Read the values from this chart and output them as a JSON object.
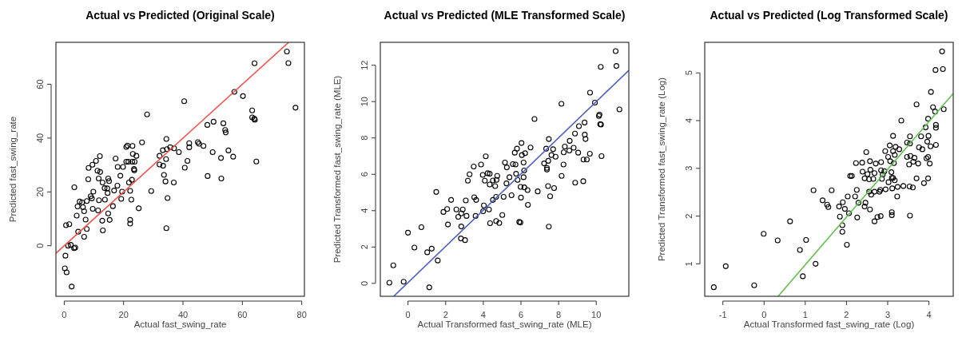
{
  "chart_data": [
    {
      "type": "scatter",
      "title": "Actual vs Predicted (Original Scale)",
      "xlabel": "Actual fast_swing_rate",
      "ylabel": "Predicted fast_swing_rate",
      "xlim": [
        -2.8,
        80.9
      ],
      "ylim": [
        -18.8,
        75.6
      ],
      "xticks": [
        0,
        20,
        40,
        60,
        80
      ],
      "yticks": [
        0,
        20,
        40,
        60
      ],
      "series": [
        {
          "marker": "circle",
          "color": "#000000",
          "x": [
            75,
            75.5,
            64.1,
            77.9,
            57.3,
            60.2,
            63.3,
            63.3,
            64,
            64.2,
            64.7,
            40.4,
            27.9,
            48.2,
            50.3,
            53.6,
            54.2,
            54.4,
            55.3,
            56.9,
            52.8,
            50,
            52.9,
            48.3,
            45,
            45.4,
            46.9,
            42.1,
            42.1,
            41.5,
            40.6,
            34.4,
            33.2,
            34.6,
            35.7,
            37,
            38.6,
            32.1,
            34.3,
            32.1,
            33.3,
            33.6,
            34.1,
            36.9,
            34.8,
            34.4,
            29.3,
            26.2,
            20.9,
            21.3,
            23,
            23.1,
            24.3,
            20.9,
            21.6,
            22.9,
            23.7,
            23.5,
            23.6,
            22.8,
            21.8,
            22.2,
            22.6,
            25.1,
            22.2,
            22.2,
            17.3,
            18,
            19.8,
            18.9,
            19.5,
            19.2,
            17.9,
            16.8,
            16.4,
            12,
            10.7,
            9.5,
            8.2,
            11.2,
            12.1,
            11.6,
            12.9,
            13.6,
            14.8,
            15.1,
            14.5,
            14.6,
            13.7,
            11.7,
            9.8,
            8.9,
            9.3,
            8.1,
            7.6,
            6,
            5.2,
            4.5,
            6.3,
            6.7,
            9.6,
            11.4,
            14.8,
            15.3,
            12.8,
            7.2,
            4.2,
            3.4,
            4.7,
            7.6,
            13,
            6.7,
            0.6,
            1.7,
            1.3,
            2.2,
            3.3,
            3.7,
            0.4,
            0.2,
            0.8,
            2.5
          ],
          "values": [
            72.2,
            67.9,
            67.8,
            51.3,
            57.2,
            55.6,
            50.3,
            47.7,
            47.2,
            46.8,
            31.3,
            53.7,
            48.8,
            44.9,
            46.1,
            45.5,
            43,
            42.1,
            35.4,
            33.1,
            32.6,
            34.8,
            25,
            25.9,
            38.5,
            37.9,
            37.1,
            38.1,
            36.6,
            31.5,
            29,
            39.7,
            35.5,
            35.9,
            36.6,
            36.2,
            34.8,
            33.4,
            32.2,
            30.2,
            29.7,
            26.3,
            23.9,
            23.5,
            17.7,
            6.5,
            20.3,
            38.4,
            36.7,
            37.2,
            37.1,
            34.1,
            33.4,
            31.2,
            31.2,
            31.2,
            31.2,
            28.5,
            28,
            24.5,
            23.5,
            20.4,
            17.1,
            13.9,
            9.6,
            8.2,
            32.4,
            29.3,
            29.3,
            26,
            20.1,
            17.4,
            22.3,
            20.5,
            14.7,
            33.3,
            31.5,
            30.1,
            28.9,
            27.9,
            27.4,
            25,
            23.5,
            21.4,
            25,
            24,
            21.3,
            19.6,
            17.1,
            16.9,
            20.1,
            18.4,
            17.6,
            24.7,
            16.6,
            16.1,
            16.4,
            14.6,
            14.3,
            12.8,
            13.7,
            13.1,
            12,
            9.6,
            9.3,
            9.7,
            11.2,
            21.7,
            5.2,
            6.2,
            5.7,
            3.3,
            7.6,
            8,
            0,
            0.3,
            -0.9,
            -0.7,
            -3.7,
            -8.4,
            -9.9,
            -15.2
          ]
        },
        {
          "type": "line",
          "color": "#f0504a",
          "x": [
            -2.8,
            75.6
          ],
          "values": [
            -2.8,
            75.6
          ]
        }
      ]
    },
    {
      "type": "scatter",
      "title": "Actual vs Predicted (MLE Transformed Scale)",
      "xlabel": "Actual Transformed fast_swing_rate (MLE)",
      "ylabel": "Predicted Transformed fast_swing_rate (MLE)",
      "xlim": [
        -1.47,
        11.73
      ],
      "ylim": [
        -0.71,
        13.26
      ],
      "xticks": [
        0,
        2,
        4,
        6,
        8,
        10
      ],
      "yticks": [
        0,
        2,
        4,
        6,
        8,
        10,
        12
      ],
      "series": [
        {
          "marker": "circle",
          "color": "#000000",
          "x": [
            11.03,
            10.24,
            11.07,
            11.23,
            9.67,
            9.93,
            8.15,
            10.17,
            10.14,
            10.21,
            10.25,
            10.28,
            6.72,
            9.38,
            9.08,
            8.87,
            9.39,
            9.43,
            8.59,
            8.33,
            8.8,
            8.57,
            8.27,
            9.04,
            9.66,
            9.32,
            9.5,
            8.26,
            7.48,
            7.34,
            7.71,
            7.62,
            7.84,
            7.45,
            7.23,
            7.38,
            7.38,
            8.16,
            7.76,
            7.44,
            7.55,
            7.48,
            8.88,
            9.31,
            6.03,
            5.79,
            5.67,
            6.51,
            6.22,
            6.05,
            6.14,
            5.71,
            5.15,
            5.25,
            5.57,
            6.17,
            5.74,
            5.39,
            6.14,
            5.82,
            5.98,
            6.18,
            6.35,
            5.23,
            5.5,
            6,
            6.37,
            5.91,
            5.97,
            6.89,
            5.01,
            4.68,
            4.85,
            4.36,
            4.13,
            3.88,
            3.49,
            3.27,
            3.18,
            3.97,
            4.08,
            4.23,
            4.34,
            4.34,
            4.51,
            4.63,
            4.74,
            4.7,
            4.51,
            4.68,
            5.08,
            3.52,
            3.62,
            4.03,
            3.99,
            4.3,
            3.59,
            3.07,
            2.29,
            2.08,
            1.88,
            2.57,
            2.91,
            2.67,
            2.83,
            3.11,
            2.12,
            2.83,
            2.81,
            3.03,
            1.5,
            0.71,
            0,
            0.34,
            1.02,
            1.26,
            1.58,
            1.13,
            -0.23,
            -0.78,
            -0.99
          ],
          "values": [
            12.78,
            11.91,
            11.96,
            9.57,
            10.49,
            9.94,
            9.88,
            9.28,
            9.21,
            8.76,
            8.74,
            7,
            9.04,
            8.85,
            8.65,
            8.24,
            8.18,
            7.94,
            7.84,
            7.53,
            7.46,
            7.31,
            7.21,
            7.19,
            7.13,
            6.81,
            6.81,
            6.54,
            7.94,
            7.41,
            7.38,
            7.06,
            6.97,
            6.74,
            6.6,
            6.35,
            6.26,
            5.91,
            5.24,
            5.35,
            4.79,
            3.12,
            5.54,
            5.62,
            7.72,
            7.41,
            7.19,
            7.47,
            7.16,
            7.06,
            6.65,
            6.54,
            6.65,
            6.38,
            6.56,
            6.21,
            6.03,
            5.84,
            5.84,
            5.69,
            5.31,
            5.28,
            5.13,
            5.5,
            4.85,
            4.72,
            4.32,
            3.38,
            3.35,
            5.06,
            3.76,
            3.43,
            3.32,
            3.31,
            6.99,
            6.54,
            6.43,
            6,
            5.65,
            5.97,
            5.65,
            6.06,
            6.03,
            5.44,
            5.66,
            5.35,
            5.91,
            5.69,
            4.59,
            4.76,
            4.76,
            4.74,
            4.59,
            4.29,
            3.97,
            4.07,
            3.71,
            4.56,
            4.59,
            4.09,
            3.93,
            4.07,
            4.07,
            3.66,
            3.85,
            3.71,
            3.24,
            3.13,
            2.47,
            2.38,
            5.03,
            3.09,
            2.79,
            1.97,
            1.71,
            1.91,
            1.26,
            -0.22,
            0.09,
            0.99,
            0.04
          ]
        },
        {
          "type": "line",
          "color": "#5060c0",
          "x": [
            -0.76,
            11.73
          ],
          "values": [
            -0.71,
            11.72
          ]
        }
      ]
    },
    {
      "type": "scatter",
      "title": "Actual vs Predicted (Log Transformed Scale)",
      "xlabel": "Actual Transformed fast_swing_rate (Log)",
      "ylabel": "Predicted Transformed fast_swing_rate (Log)",
      "xlim": [
        -1.44,
        4.59
      ],
      "ylim": [
        0.32,
        5.64
      ],
      "xticks": [
        -1,
        0,
        1,
        2,
        3,
        4
      ],
      "yticks": [
        1,
        2,
        3,
        4,
        5
      ],
      "series": [
        {
          "marker": "circle",
          "color": "#000000",
          "x": [
            4.32,
            4.34,
            4.16,
            4.05,
            4.36,
            3.7,
            4.1,
            4.15,
            4.17,
            4.17,
            3.98,
            3.33,
            3.92,
            3.13,
            3.54,
            3.81,
            3.99,
            4.17,
            3.96,
            3.76,
            3.84,
            4.04,
            3.54,
            3.47,
            3.05,
            3.19,
            3.13,
            3.28,
            2.94,
            3.01,
            3.17,
            3.55,
            3.47,
            3.65,
            3.94,
            3.98,
            4.02,
            3.74,
            3.62,
            3.52,
            3.15,
            3.06,
            2.84,
            2.71,
            2.57,
            2.23,
            2.38,
            2.48,
            2.84,
            2.92,
            3.09,
            2.68,
            2.58,
            2.39,
            2.51,
            2.44,
            2.55,
            2.65,
            2.88,
            3.1,
            3.17,
            3.02,
            2.86,
            3.13,
            2.09,
            2.13,
            3.7,
            3.98,
            3.88,
            3.38,
            3.53,
            3.61,
            3.24,
            3.11,
            2.95,
            2.82,
            2.68,
            2.55,
            2.8,
            2.6,
            2.25,
            2.21,
            2.03,
            3.23,
            2.46,
            2.29,
            2.44,
            2.57,
            1.91,
            1.82,
            1.96,
            2.06,
            1.84,
            2.26,
            2.68,
            2.75,
            2.83,
            3.1,
            3.1,
            3.54,
            1.2,
            1.64,
            1.42,
            1.53,
            1.56,
            1.9,
            1.9,
            2.01,
            0.63,
            -0.01,
            0.33,
            1.02,
            0.87,
            1.25,
            0.94,
            -0.24,
            -0.93,
            -1.22
          ],
          "values": [
            5.45,
            5.08,
            5.06,
            4.6,
            4.24,
            4.34,
            4.28,
            4.19,
            3.91,
            3.85,
            4.04,
            4,
            3.86,
            3.68,
            3.67,
            3.67,
            3.68,
            3.49,
            3.56,
            3.44,
            3.4,
            3.46,
            3.52,
            3.54,
            3.48,
            3.45,
            3.36,
            3.4,
            3.36,
            3.24,
            3.28,
            3.26,
            3.24,
            3.22,
            3.21,
            3.24,
            3.1,
            3.1,
            3.14,
            3.08,
            3.11,
            3.15,
            3.13,
            3.1,
            3.15,
            3.11,
            3.12,
            3.34,
            2.96,
            2.94,
            2.92,
            2.9,
            2.97,
            2.93,
            2.88,
            2.79,
            2.77,
            2.78,
            2.87,
            2.8,
            2.75,
            2.71,
            2.78,
            2.8,
            2.84,
            2.84,
            2.79,
            2.79,
            2.69,
            2.63,
            2.62,
            2.6,
            2.61,
            2.58,
            2.56,
            2.55,
            2.51,
            2.51,
            2.51,
            2.45,
            2.55,
            2.41,
            2.41,
            2.41,
            2.28,
            2.28,
            2.2,
            2.14,
            2.29,
            2.2,
            2.15,
            2.06,
            1.99,
            1.97,
            1.89,
            1.98,
            2,
            2.08,
            2.02,
            2.01,
            2.54,
            2.54,
            2.33,
            2.24,
            2.19,
            1.81,
            1.67,
            1.4,
            1.89,
            1.63,
            1.49,
            1.5,
            1.29,
            1,
            0.74,
            0.55,
            0.95,
            0.51
          ]
        },
        {
          "type": "line",
          "color": "#66c050",
          "x": [
            0.34,
            4.59
          ],
          "values": [
            0.32,
            4.57
          ]
        }
      ]
    }
  ]
}
